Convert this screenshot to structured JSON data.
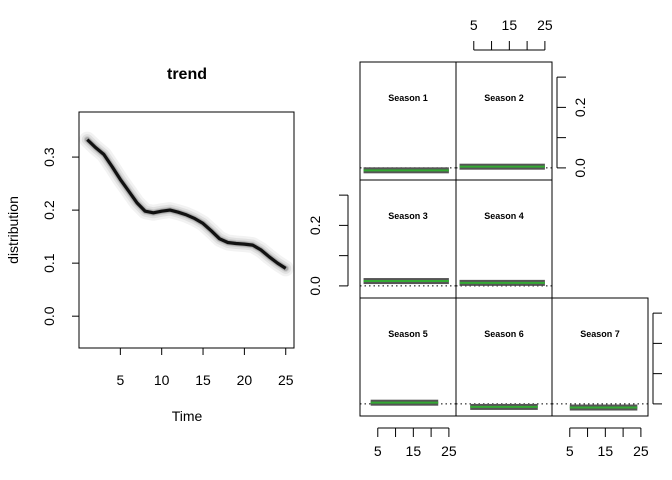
{
  "chart_data": [
    {
      "type": "line",
      "title": "trend",
      "xlabel": "Time",
      "ylabel": "distribution",
      "xlim": [
        0,
        26
      ],
      "ylim": [
        -0.06,
        0.385
      ],
      "xticks": [
        5,
        10,
        15,
        20,
        25
      ],
      "yticks": [
        0.0,
        0.1,
        0.2,
        0.3
      ],
      "x": [
        1,
        2,
        3,
        4,
        5,
        6,
        7,
        8,
        9,
        10,
        11,
        12,
        13,
        14,
        15,
        16,
        17,
        18,
        19,
        20,
        21,
        22,
        23,
        24,
        25
      ],
      "series": [
        {
          "values": [
            0.333,
            0.318,
            0.305,
            0.282,
            0.258,
            0.236,
            0.214,
            0.198,
            0.195,
            0.198,
            0.2,
            0.196,
            0.191,
            0.184,
            0.175,
            0.161,
            0.146,
            0.139,
            0.137,
            0.136,
            0.134,
            0.125,
            0.112,
            0.1,
            0.09
          ]
        }
      ],
      "color": "#000000"
    },
    {
      "type": "line",
      "panels": [
        {
          "label": "Season 1",
          "x": [
            1,
            2,
            3,
            4,
            5,
            6,
            7,
            8,
            9,
            10,
            11,
            12,
            13,
            14,
            15,
            16,
            17,
            18,
            19,
            20,
            21,
            22,
            23,
            24,
            25
          ],
          "value": -0.008
        },
        {
          "label": "Season 2",
          "x": [
            1,
            2,
            3,
            4,
            5,
            6,
            7,
            8,
            9,
            10,
            11,
            12,
            13,
            14,
            15,
            16,
            17,
            18,
            19,
            20,
            21,
            22,
            23,
            24,
            25
          ],
          "value": 0.004
        },
        {
          "label": "Season 3",
          "x": [
            1,
            2,
            3,
            4,
            5,
            6,
            7,
            8,
            9,
            10,
            11,
            12,
            13,
            14,
            15,
            16,
            17,
            18,
            19,
            20,
            21,
            22,
            23,
            24,
            25
          ],
          "value": 0.016
        },
        {
          "label": "Season 4",
          "x": [
            1,
            2,
            3,
            4,
            5,
            6,
            7,
            8,
            9,
            10,
            11,
            12,
            13,
            14,
            15,
            16,
            17,
            18,
            19,
            20,
            21,
            22,
            23,
            24,
            25
          ],
          "value": 0.01
        },
        {
          "label": "Season 5",
          "x": [
            3,
            4,
            5,
            6,
            7,
            8,
            9,
            10,
            11,
            12,
            13,
            14,
            15,
            16,
            17,
            18,
            19,
            20,
            21,
            22
          ],
          "value": 0.004
        },
        {
          "label": "Season 6",
          "x": [
            4,
            5,
            6,
            7,
            8,
            9,
            10,
            11,
            12,
            13,
            14,
            15,
            16,
            17,
            18,
            19,
            20,
            21,
            22,
            23
          ],
          "value": -0.01
        },
        {
          "label": "Season 7",
          "x": [
            5,
            6,
            7,
            8,
            9,
            10,
            11,
            12,
            13,
            14,
            15,
            16,
            17,
            18,
            19,
            20,
            21,
            22,
            23,
            24
          ],
          "value": -0.012
        }
      ],
      "xticks": [
        5,
        15,
        25
      ],
      "xticks_minor": [
        5,
        10,
        15,
        20,
        25
      ],
      "xlim": [
        0,
        27
      ],
      "ylim": [
        -0.04,
        0.35
      ],
      "yticks_labeled": [
        0.0,
        0.2
      ],
      "yticks_minor": [
        0.0,
        0.1,
        0.2,
        0.3
      ],
      "line_color": "#33aa33",
      "band_color": "#555555",
      "zero_line": "dotted"
    }
  ]
}
